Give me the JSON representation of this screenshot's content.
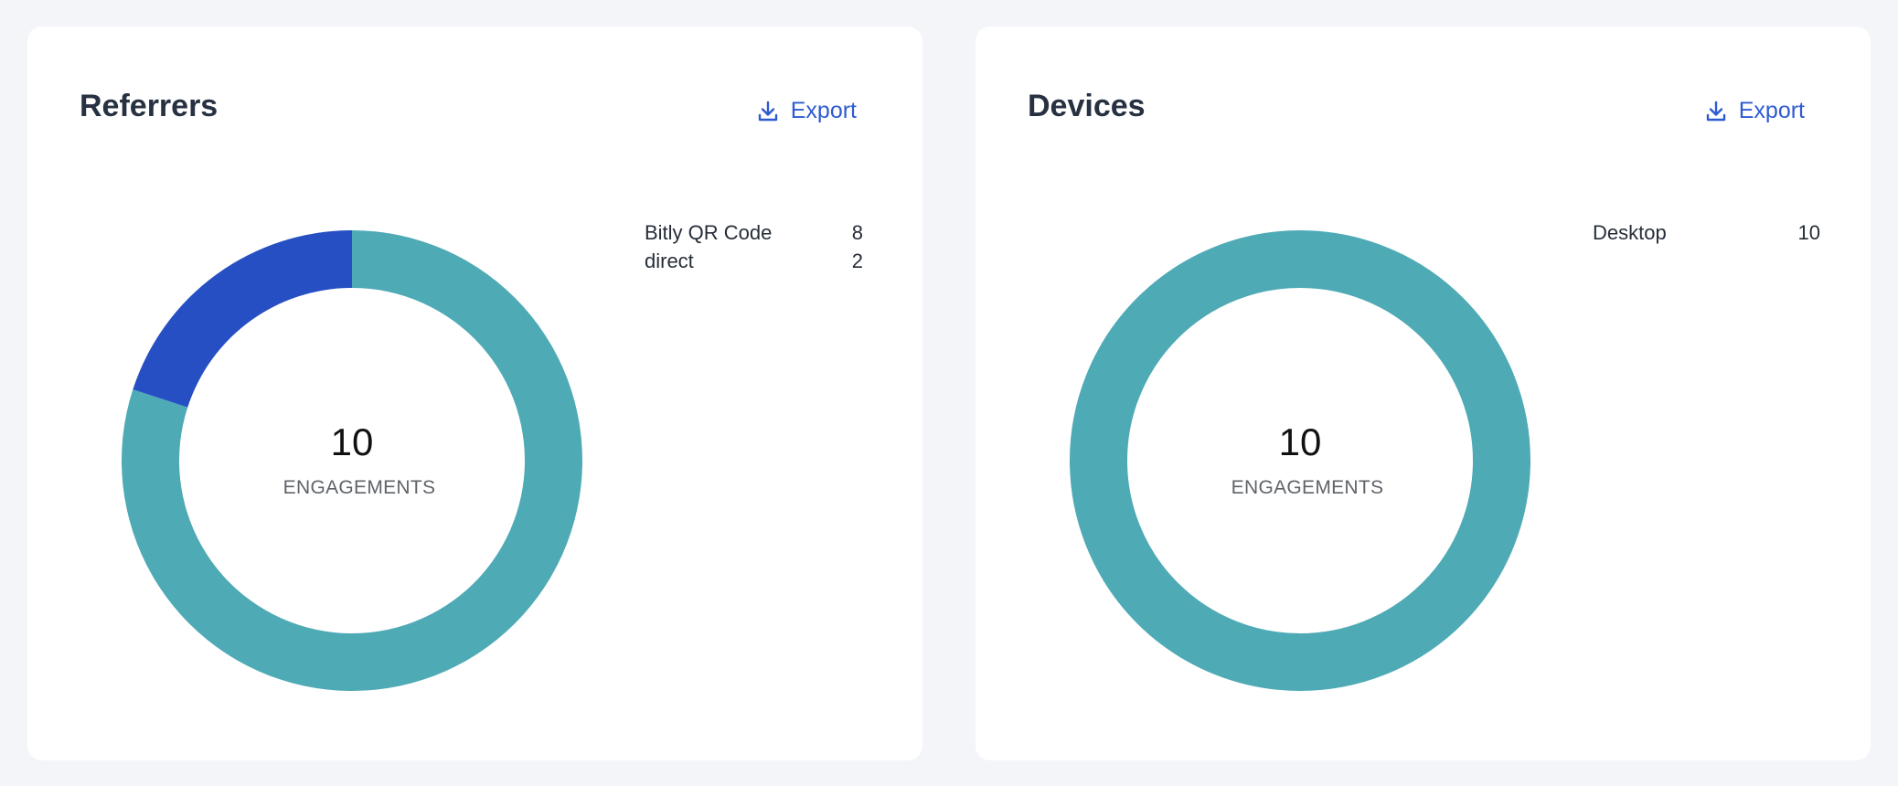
{
  "colors": {
    "primary_segment": "#4eaab5",
    "secondary_segment": "#264fc3",
    "accent": "#2f5bd1"
  },
  "referrers": {
    "title": "Referrers",
    "export_label": "Export",
    "export_icon": "download-icon",
    "total": "10",
    "total_label": "ENGAGEMENTS",
    "items": [
      {
        "label": "Bitly QR Code",
        "value": "8"
      },
      {
        "label": "direct",
        "value": "2"
      }
    ]
  },
  "devices": {
    "title": "Devices",
    "export_label": "Export",
    "export_icon": "download-icon",
    "total": "10",
    "total_label": "ENGAGEMENTS",
    "items": [
      {
        "label": "Desktop",
        "value": "10"
      }
    ]
  },
  "chart_data": [
    {
      "type": "pie",
      "categories": [
        "Bitly QR Code",
        "direct"
      ],
      "values": [
        8,
        2
      ],
      "title": "Referrers"
    },
    {
      "type": "pie",
      "categories": [
        "Desktop"
      ],
      "values": [
        10
      ],
      "title": "Devices"
    }
  ]
}
